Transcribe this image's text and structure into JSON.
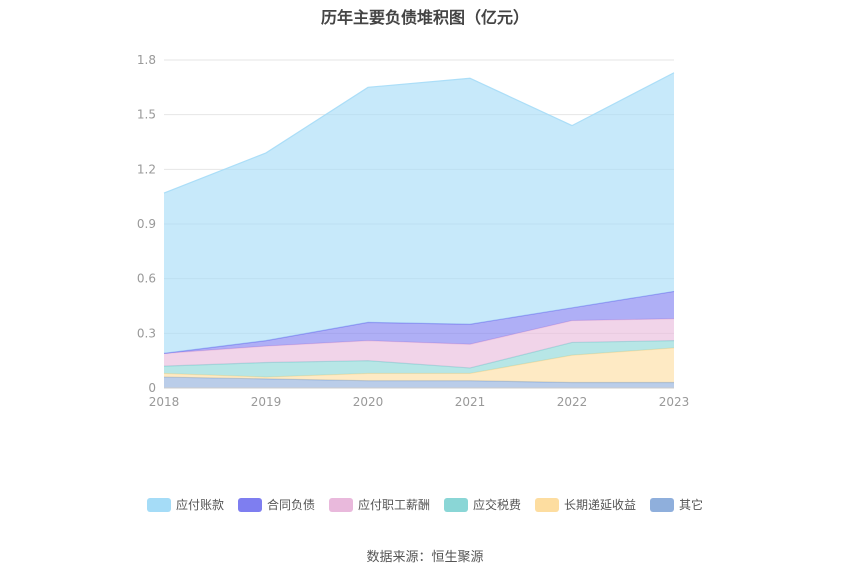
{
  "chart_data": {
    "type": "area",
    "stacked": true,
    "title": "历年主要负债堆积图（亿元）",
    "x": [
      "2018",
      "2019",
      "2020",
      "2021",
      "2022",
      "2023"
    ],
    "ylim": [
      0,
      1.8
    ],
    "yticks": [
      "0",
      "0.3",
      "0.6",
      "0.9",
      "1.2",
      "1.5",
      "1.8"
    ],
    "grid": true,
    "legend_position": "bottom",
    "series": [
      {
        "name": "其它",
        "color": "#8fafdc",
        "values": [
          0.06,
          0.05,
          0.04,
          0.04,
          0.03,
          0.03
        ]
      },
      {
        "name": "长期递延收益",
        "color": "#fddda0",
        "values": [
          0.02,
          0.01,
          0.04,
          0.04,
          0.15,
          0.19
        ]
      },
      {
        "name": "应交税费",
        "color": "#8ad6d6",
        "values": [
          0.04,
          0.08,
          0.07,
          0.03,
          0.07,
          0.04
        ]
      },
      {
        "name": "应付职工薪酬",
        "color": "#e9b9dc",
        "values": [
          0.07,
          0.09,
          0.11,
          0.13,
          0.12,
          0.12
        ]
      },
      {
        "name": "合同负债",
        "color": "#7e7ef0",
        "values": [
          0.0,
          0.03,
          0.1,
          0.11,
          0.07,
          0.15
        ]
      },
      {
        "name": "应付账款",
        "color": "#a5dcf7",
        "values": [
          0.88,
          1.03,
          1.29,
          1.35,
          1.0,
          1.2
        ]
      }
    ]
  },
  "legend_order": [
    "应付账款",
    "合同负债",
    "应付职工薪酬",
    "应交税费",
    "长期递延收益",
    "其它"
  ],
  "footer": {
    "source": "数据来源：恒生聚源"
  }
}
